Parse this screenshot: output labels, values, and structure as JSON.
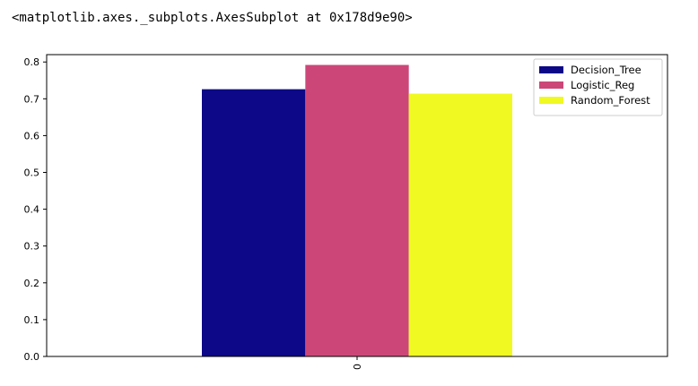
{
  "cell_output": {
    "repr_text": "<matplotlib.axes._subplots.AxesSubplot at 0x178d9e90>"
  },
  "chart_data": {
    "type": "bar",
    "title": "",
    "xlabel": "",
    "ylabel": "",
    "categories": [
      "0"
    ],
    "series": [
      {
        "name": "Decision_Tree",
        "values": [
          0.726
        ],
        "color": "#0d0887"
      },
      {
        "name": "Logistic_Reg",
        "values": [
          0.792
        ],
        "color": "#cc4778"
      },
      {
        "name": "Random_Forest",
        "values": [
          0.714
        ],
        "color": "#f0f921"
      }
    ],
    "ylim": [
      0,
      0.82
    ],
    "yticks": [
      "0.0",
      "0.1",
      "0.2",
      "0.3",
      "0.4",
      "0.5",
      "0.6",
      "0.7",
      "0.8"
    ],
    "xtick_rotation": "vertical",
    "grid": false,
    "legend_position": "top-right"
  }
}
